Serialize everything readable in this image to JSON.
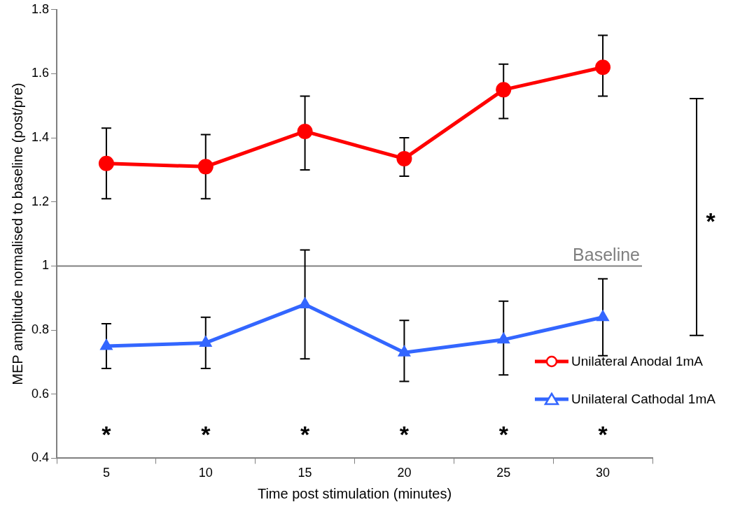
{
  "chart_data": {
    "type": "line",
    "xlabel": "Time post stimulation (minutes)",
    "ylabel": "MEP amplitude normalised to baseline (post/pre)",
    "categories": [
      "5",
      "10",
      "15",
      "20",
      "25",
      "30"
    ],
    "series": [
      {
        "name": "Unilateral Anodal 1mA",
        "color": "#ff0000",
        "marker": "circle",
        "values": [
          1.32,
          1.31,
          1.42,
          1.335,
          1.55,
          1.62
        ],
        "errors": [
          [
            1.21,
            1.43
          ],
          [
            1.21,
            1.41
          ],
          [
            1.3,
            1.53
          ],
          [
            1.28,
            1.4
          ],
          [
            1.46,
            1.63
          ],
          [
            1.53,
            1.72
          ]
        ]
      },
      {
        "name": "Unilateral Cathodal 1mA",
        "color": "#3366ff",
        "marker": "triangle",
        "values": [
          0.75,
          0.76,
          0.88,
          0.73,
          0.77,
          0.84
        ],
        "errors": [
          [
            0.68,
            0.82
          ],
          [
            0.68,
            0.84
          ],
          [
            0.71,
            1.05
          ],
          [
            0.64,
            0.83
          ],
          [
            0.66,
            0.89
          ],
          [
            0.72,
            0.96
          ]
        ]
      }
    ],
    "ylim": [
      0.4,
      1.8
    ],
    "yticks": [
      0.4,
      0.6,
      0.8,
      1,
      1.2,
      1.4,
      1.6,
      1.8
    ],
    "grid": false,
    "legend": "bottom right",
    "ref_lines": [
      {
        "axis": "y",
        "value": 1,
        "label": "Baseline",
        "color": "#808080"
      }
    ],
    "annotations": [
      "*",
      "*",
      "*",
      "*",
      "*",
      "*",
      "*"
    ]
  }
}
